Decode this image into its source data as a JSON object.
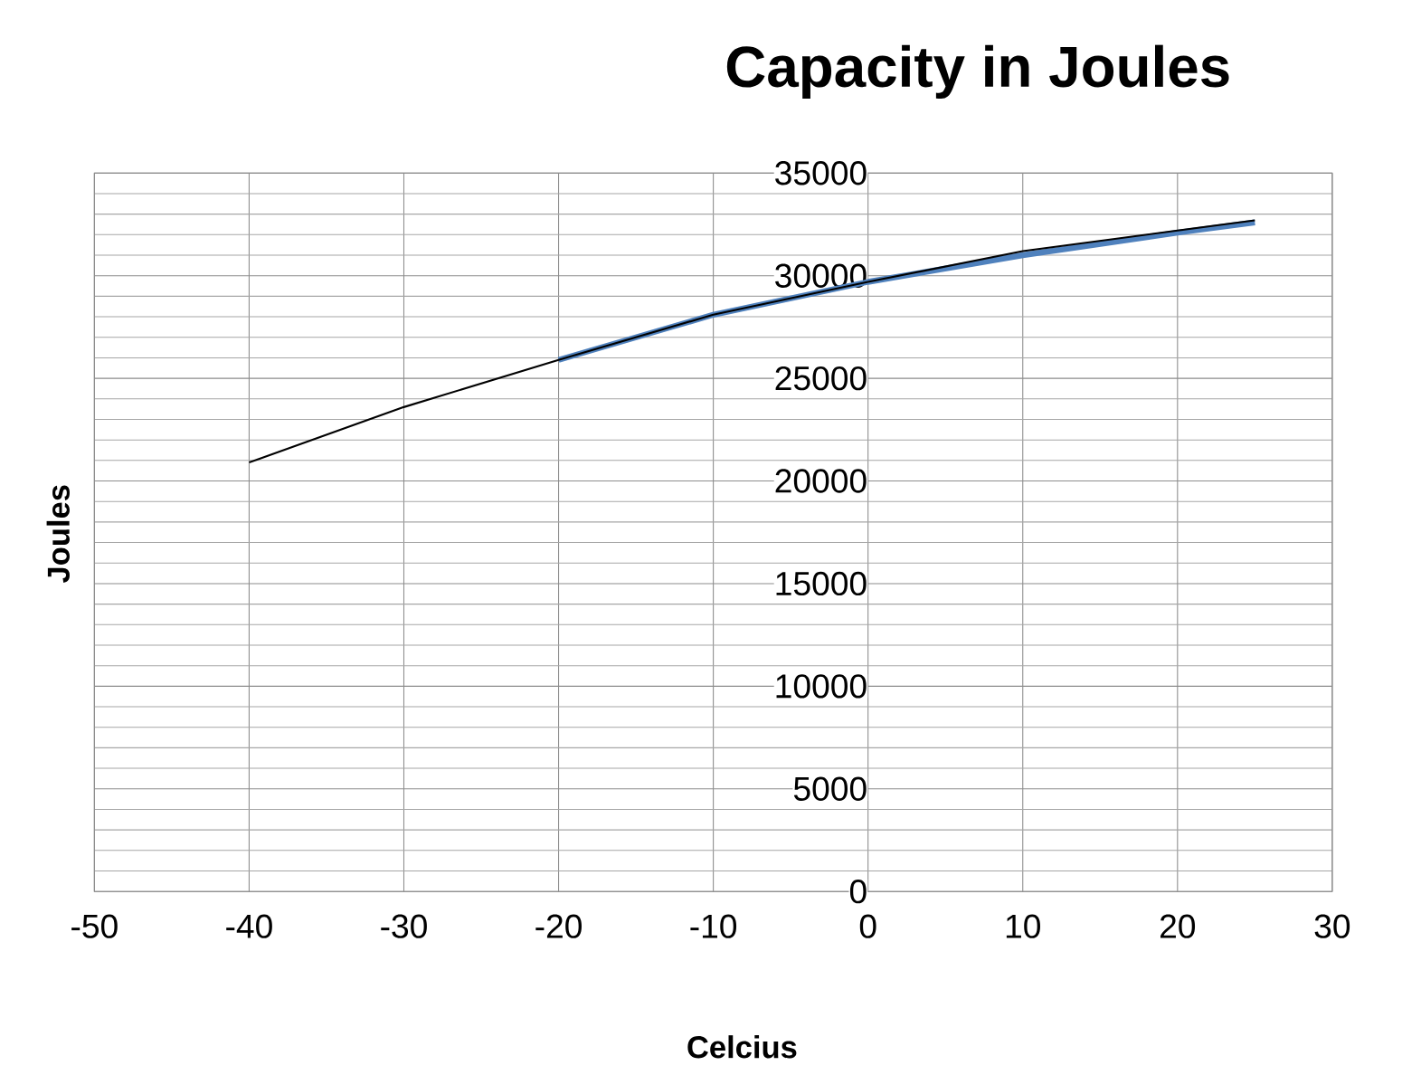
{
  "chart_data": {
    "type": "line",
    "title": "Capacity in Joules",
    "xlabel": "Celcius",
    "ylabel": "Joules",
    "xlim": [
      -50,
      30
    ],
    "xticks": [
      -50,
      -40,
      -30,
      -20,
      -10,
      0,
      10,
      20,
      30
    ],
    "ylim": [
      0,
      35000
    ],
    "yticks": [
      0,
      5000,
      10000,
      15000,
      20000,
      25000,
      30000,
      35000
    ],
    "grid": true,
    "marker": "none",
    "series": [
      {
        "color": "#4f81bd",
        "x": [
          -20,
          -10,
          0,
          10,
          20,
          25
        ],
        "values": [
          25900,
          28100,
          29700,
          31000,
          32100,
          32600
        ]
      },
      {
        "color": "#000000",
        "x": [
          -40,
          -30,
          -20,
          -10,
          0,
          10,
          20,
          25
        ],
        "values": [
          20900,
          23600,
          25900,
          28100,
          29700,
          31200,
          32200,
          32700
        ]
      }
    ]
  }
}
